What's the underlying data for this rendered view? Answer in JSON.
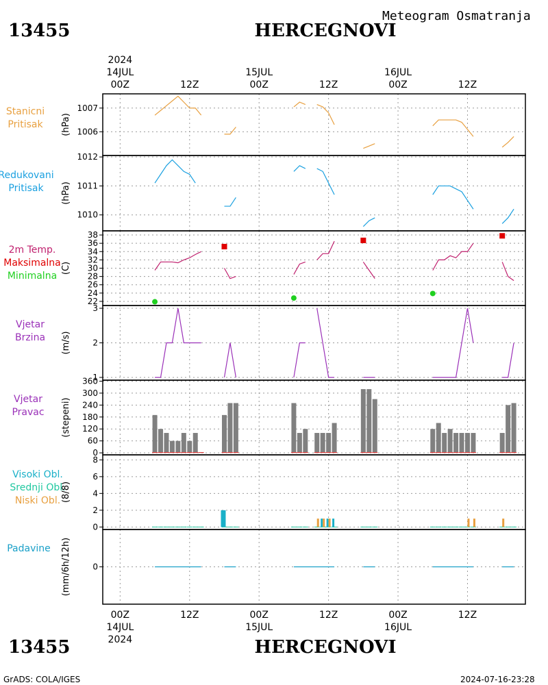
{
  "header": {
    "station_id": "13455",
    "station_name": "HERCEGNOVI",
    "product_title": "Meteogram Osmatranja"
  },
  "footer": {
    "station_id": "13455",
    "station_name": "HERCEGNOVI",
    "credit": "GrADS: COLA/IGES",
    "timestamp": "2024-07-16-23:28"
  },
  "time_axis": {
    "top_year": "2024",
    "bottom_year": "2024",
    "ticks": [
      {
        "h": 0,
        "label": "00Z",
        "date": "14JUL"
      },
      {
        "h": 12,
        "label": "12Z",
        "date": ""
      },
      {
        "h": 24,
        "label": "00Z",
        "date": "15JUL"
      },
      {
        "h": 36,
        "label": "12Z",
        "date": ""
      },
      {
        "h": 48,
        "label": "00Z",
        "date": "16JUL"
      },
      {
        "h": 60,
        "label": "12Z",
        "date": ""
      }
    ],
    "range_hours": [
      -3,
      70
    ]
  },
  "panels": {
    "pressure": {
      "label1": "Stanicni",
      "label2": "Pritisak",
      "ylabel": "(hPa)",
      "color": "#e8a040"
    },
    "reduced": {
      "label1": "Redukovani",
      "label2": "Pritisak",
      "ylabel": "(hPa)",
      "color": "#1aa0e0"
    },
    "temperature": {
      "label1": "2m Temp.",
      "label2": "Maksimalna",
      "label3": "Minimalna",
      "ylabel": "(C)",
      "color": "#c0206e",
      "max_color": "#e00000",
      "min_color": "#20d020"
    },
    "wind_speed": {
      "label1": "Vjetar",
      "label2": "Brzina",
      "ylabel": "(m/s)",
      "color": "#9a30b8"
    },
    "wind_dir": {
      "label1": "Vjetar",
      "label2": "Pravac",
      "ylabel": "(stepeni)",
      "color": "#9a30b8"
    },
    "clouds": {
      "label1": "Visoki Obl.",
      "label2": "Srednji Obl.",
      "label3": "Niski Obl.",
      "ylabel": "(8/8)",
      "color_high": "#1ab0c8",
      "color_mid": "#20c8a0",
      "color_low": "#e8a040"
    },
    "precip": {
      "label1": "Padavine",
      "ylabel": "(mm/6h/12h)",
      "color": "#1aa0c8"
    }
  },
  "chart_data": [
    {
      "type": "line",
      "title": "Stanicni Pritisak",
      "ylabel": "(hPa)",
      "ylim": [
        1005.0,
        1007.6
      ],
      "yticks": [
        1006,
        1007
      ],
      "series": [
        {
          "segments": [
            [
              [
                6,
                1006.7
              ],
              [
                7,
                1006.9
              ],
              [
                8,
                1007.1
              ],
              [
                9,
                1007.3
              ],
              [
                10,
                1007.5
              ],
              [
                11,
                1007.25
              ],
              [
                12,
                1007.0
              ],
              [
                13,
                1007.0
              ],
              [
                14,
                1006.7
              ]
            ],
            [
              [
                18,
                1005.9
              ],
              [
                19,
                1005.9
              ],
              [
                20,
                1006.2
              ]
            ],
            [
              [
                30,
                1007.05
              ],
              [
                31,
                1007.25
              ],
              [
                32,
                1007.15
              ]
            ],
            [
              [
                34,
                1007.15
              ],
              [
                35,
                1007.05
              ],
              [
                36,
                1006.8
              ],
              [
                37,
                1006.3
              ]
            ],
            [
              [
                42,
                1005.3
              ],
              [
                43,
                1005.4
              ],
              [
                44,
                1005.5
              ]
            ],
            [
              [
                54,
                1006.25
              ],
              [
                55,
                1006.5
              ],
              [
                56,
                1006.5
              ],
              [
                57,
                1006.5
              ],
              [
                58,
                1006.5
              ],
              [
                59,
                1006.4
              ],
              [
                60,
                1006.1
              ],
              [
                61,
                1005.8
              ]
            ],
            [
              [
                66,
                1005.35
              ],
              [
                67,
                1005.55
              ],
              [
                68,
                1005.8
              ]
            ]
          ]
        }
      ]
    },
    {
      "type": "line",
      "title": "Redukovani Pritisak",
      "ylabel": "(hPa)",
      "ylim": [
        1009.45,
        1012.05
      ],
      "yticks": [
        1010,
        1011,
        1012
      ],
      "series": [
        {
          "segments": [
            [
              [
                6,
                1011.1
              ],
              [
                7,
                1011.4
              ],
              [
                8,
                1011.7
              ],
              [
                9,
                1011.9
              ],
              [
                10,
                1011.7
              ],
              [
                11,
                1011.5
              ],
              [
                12,
                1011.4
              ],
              [
                13,
                1011.1
              ]
            ],
            [
              [
                18,
                1010.3
              ],
              [
                19,
                1010.3
              ],
              [
                20,
                1010.6
              ]
            ],
            [
              [
                30,
                1011.5
              ],
              [
                31,
                1011.7
              ],
              [
                32,
                1011.6
              ]
            ],
            [
              [
                34,
                1011.6
              ],
              [
                35,
                1011.5
              ],
              [
                36,
                1011.1
              ],
              [
                37,
                1010.7
              ]
            ],
            [
              [
                42,
                1009.6
              ],
              [
                43,
                1009.8
              ],
              [
                44,
                1009.9
              ]
            ],
            [
              [
                54,
                1010.7
              ],
              [
                55,
                1011.0
              ],
              [
                56,
                1011.0
              ],
              [
                57,
                1011.0
              ],
              [
                58,
                1010.9
              ],
              [
                59,
                1010.8
              ],
              [
                60,
                1010.5
              ],
              [
                61,
                1010.2
              ]
            ],
            [
              [
                66,
                1009.7
              ],
              [
                67,
                1009.9
              ],
              [
                68,
                1010.2
              ]
            ]
          ]
        }
      ]
    },
    {
      "type": "line",
      "title": "2m Temp.",
      "ylabel": "(C)",
      "ylim": [
        21,
        39
      ],
      "yticks": [
        22,
        24,
        26,
        28,
        30,
        32,
        34,
        36,
        38
      ],
      "series": [
        {
          "name": "2m Temp.",
          "segments": [
            [
              [
                6,
                29.5
              ],
              [
                7,
                31.5
              ],
              [
                8,
                31.5
              ],
              [
                9,
                31.5
              ],
              [
                10,
                31.3
              ],
              [
                11,
                32.0
              ],
              [
                12,
                32.5
              ],
              [
                13,
                33.3
              ],
              [
                14,
                34.0
              ]
            ],
            [
              [
                18,
                30.0
              ],
              [
                19,
                27.5
              ],
              [
                20,
                28.0
              ]
            ],
            [
              [
                30,
                28.5
              ],
              [
                31,
                31.0
              ],
              [
                32,
                31.5
              ]
            ],
            [
              [
                34,
                32.0
              ],
              [
                35,
                33.5
              ],
              [
                36,
                33.5
              ],
              [
                37,
                36.5
              ]
            ],
            [
              [
                42,
                31.5
              ],
              [
                43,
                29.5
              ],
              [
                44,
                27.5
              ]
            ],
            [
              [
                54,
                29.5
              ],
              [
                55,
                32.0
              ],
              [
                56,
                32.0
              ],
              [
                57,
                33.0
              ],
              [
                58,
                32.5
              ],
              [
                59,
                34.0
              ],
              [
                60,
                34.0
              ],
              [
                61,
                36.0
              ]
            ],
            [
              [
                66,
                31.5
              ],
              [
                67,
                28.0
              ],
              [
                68,
                27.0
              ]
            ]
          ]
        },
        {
          "name": "Maksimalna",
          "points": [
            [
              18,
              35.2
            ],
            [
              42,
              36.7
            ],
            [
              66,
              37.8
            ]
          ]
        },
        {
          "name": "Minimalna",
          "points": [
            [
              6,
              21.9
            ],
            [
              30,
              22.8
            ],
            [
              54,
              23.9
            ]
          ]
        }
      ]
    },
    {
      "type": "line",
      "title": "Vjetar Brzina",
      "ylabel": "(m/s)",
      "ylim": [
        0.92,
        3.08
      ],
      "yticks": [
        1,
        2,
        3
      ],
      "series": [
        {
          "segments": [
            [
              [
                6,
                1
              ],
              [
                7,
                1
              ],
              [
                8,
                2
              ],
              [
                9,
                2
              ],
              [
                10,
                3
              ],
              [
                11,
                2
              ],
              [
                12,
                2
              ],
              [
                13,
                2
              ],
              [
                14,
                2
              ]
            ],
            [
              [
                18,
                1
              ],
              [
                19,
                2
              ],
              [
                20,
                1
              ]
            ],
            [
              [
                30,
                1
              ],
              [
                31,
                2
              ],
              [
                32,
                2
              ]
            ],
            [
              [
                34,
                3
              ],
              [
                35,
                2
              ],
              [
                36,
                1
              ],
              [
                37,
                1
              ]
            ],
            [
              [
                42,
                1
              ],
              [
                43,
                1
              ],
              [
                44,
                1
              ]
            ],
            [
              [
                54,
                1
              ],
              [
                55,
                1
              ],
              [
                56,
                1
              ],
              [
                57,
                1
              ],
              [
                58,
                1
              ],
              [
                59,
                2
              ],
              [
                60,
                3
              ],
              [
                61,
                2
              ]
            ],
            [
              [
                66,
                1
              ],
              [
                67,
                1
              ],
              [
                68,
                2
              ]
            ]
          ]
        }
      ]
    },
    {
      "type": "bar",
      "title": "Vjetar Pravac",
      "ylabel": "(stepeni)",
      "ylim": [
        -10,
        365
      ],
      "yticks": [
        0,
        60,
        120,
        180,
        240,
        300,
        360
      ],
      "x": [
        6,
        7,
        8,
        9,
        10,
        11,
        12,
        13,
        14,
        18,
        19,
        20,
        30,
        31,
        32,
        34,
        35,
        36,
        37,
        42,
        43,
        44,
        54,
        55,
        56,
        57,
        58,
        59,
        60,
        61,
        66,
        67,
        68
      ],
      "values": [
        190,
        120,
        100,
        60,
        60,
        100,
        60,
        100,
        null,
        190,
        250,
        250,
        250,
        100,
        120,
        100,
        100,
        100,
        150,
        320,
        320,
        270,
        120,
        150,
        100,
        120,
        100,
        100,
        100,
        100,
        100,
        240,
        250
      ]
    },
    {
      "type": "bar",
      "title": "Visoki Obl. Srednji Obl. Niski Obl.",
      "ylabel": "(8/8)",
      "ylim": [
        -0.3,
        8.6
      ],
      "yticks": [
        0,
        2,
        4,
        6,
        8
      ],
      "series": [
        {
          "name": "Visoki Obl.",
          "points": [
            [
              18,
              2
            ],
            [
              35,
              1
            ],
            [
              36,
              1
            ],
            [
              37,
              1
            ]
          ]
        },
        {
          "name": "Srednji Obl.",
          "points": []
        },
        {
          "name": "Niski Obl.",
          "points": [
            [
              34,
              1
            ],
            [
              35,
              1
            ],
            [
              36,
              1
            ],
            [
              60,
              1
            ],
            [
              61,
              1
            ],
            [
              66,
              1
            ]
          ]
        }
      ]
    },
    {
      "type": "line",
      "title": "Padavine",
      "ylabel": "(mm/6h/12h)",
      "ylim": [
        -4,
        4
      ],
      "yticks": [
        0
      ],
      "series": [
        {
          "segments": [
            [
              [
                6,
                0
              ],
              [
                14,
                0
              ]
            ],
            [
              [
                18,
                0
              ],
              [
                20,
                0
              ]
            ],
            [
              [
                30,
                0
              ],
              [
                37,
                0
              ]
            ],
            [
              [
                42,
                0
              ],
              [
                44,
                0
              ]
            ],
            [
              [
                54,
                0
              ],
              [
                61,
                0
              ]
            ],
            [
              [
                66,
                0
              ],
              [
                68,
                0
              ]
            ]
          ]
        }
      ]
    }
  ]
}
